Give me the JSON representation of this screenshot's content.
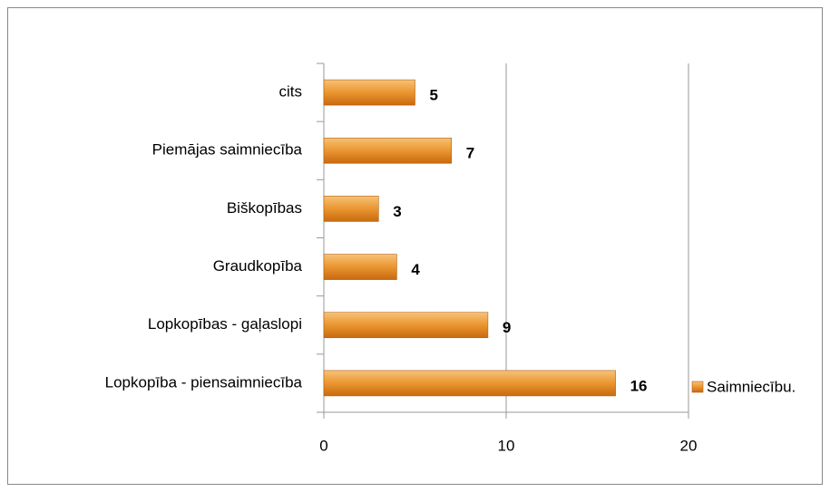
{
  "chart_data": {
    "type": "bar",
    "orientation": "horizontal",
    "categories": [
      "Lopkopība - piensaimniecība",
      "Lopkopības - gaļaslopi",
      "Graudkopība",
      "Biškopības",
      "Piemājas saimniecība",
      "cits"
    ],
    "series": [
      {
        "name": "Saimniecību.",
        "color": "#e8861a",
        "values": [
          16,
          9,
          4,
          3,
          7,
          5
        ]
      }
    ],
    "xlim": [
      0,
      20
    ],
    "xticks": [
      0,
      10,
      20
    ],
    "grid": true,
    "legend": "right"
  }
}
